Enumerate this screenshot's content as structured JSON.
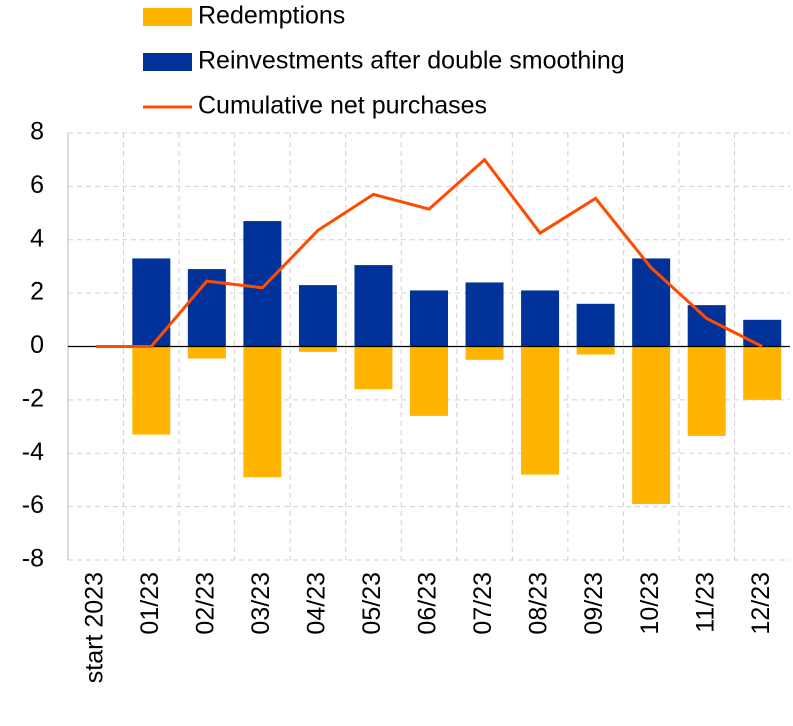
{
  "chart_data": {
    "type": "bar",
    "categories": [
      "start 2023",
      "01/23",
      "02/23",
      "03/23",
      "04/23",
      "05/23",
      "06/23",
      "07/23",
      "08/23",
      "09/23",
      "10/23",
      "11/23",
      "12/23"
    ],
    "series": [
      {
        "name": "Redemptions",
        "color": "#ffb400",
        "type": "bar",
        "values": [
          null,
          -3.3,
          -0.45,
          -4.9,
          -0.2,
          -1.6,
          -2.6,
          -0.5,
          -4.8,
          -0.3,
          -5.9,
          -3.35,
          -2.0
        ]
      },
      {
        "name": "Reinvestments after double smoothing",
        "color": "#003299",
        "type": "bar",
        "values": [
          null,
          3.3,
          2.9,
          4.7,
          2.3,
          3.05,
          2.1,
          2.4,
          2.1,
          1.6,
          3.3,
          1.55,
          1.0
        ]
      },
      {
        "name": "Cumulative net purchases",
        "color": "#ff4b00",
        "type": "line",
        "values": [
          0,
          0,
          2.45,
          2.2,
          4.35,
          5.7,
          5.15,
          7.0,
          4.25,
          5.55,
          2.95,
          1.05,
          0
        ]
      }
    ],
    "ylim": [
      -8,
      8
    ],
    "yticks": [
      -8,
      -6,
      -4,
      -2,
      0,
      2,
      4,
      6,
      8
    ],
    "grid": true
  }
}
